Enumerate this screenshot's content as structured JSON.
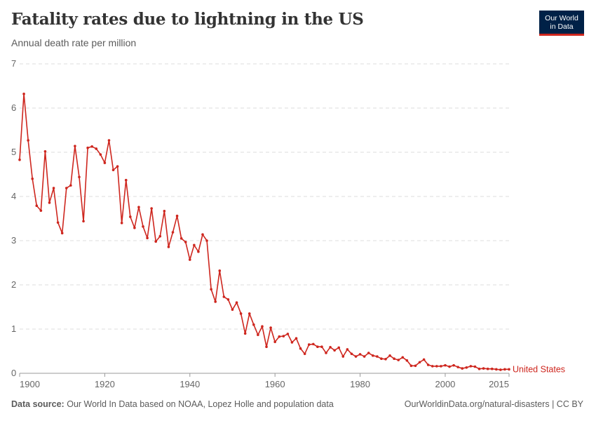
{
  "header": {
    "title": "Fatality rates due to lightning in the US",
    "subtitle": "Annual death rate per million"
  },
  "logo": {
    "line1": "Our World",
    "line2": "in Data",
    "bg": "#002147",
    "accent": "#ce261e"
  },
  "footer": {
    "source_label": "Data source:",
    "source_text": "Our World In Data based on NOAA, Lopez Holle and population data",
    "link": "OurWorldinData.org/natural-disasters | CC BY"
  },
  "chart_data": {
    "type": "line",
    "title": "Fatality rates due to lightning in the US",
    "subtitle": "Annual death rate per million",
    "xlim": [
      1900,
      2015
    ],
    "ylim": [
      0,
      7
    ],
    "x_ticks": [
      1900,
      1920,
      1940,
      1960,
      1980,
      2000,
      2015
    ],
    "y_ticks": [
      0,
      1,
      2,
      3,
      4,
      5,
      6,
      7
    ],
    "grid": "horizontal dashed",
    "color": "#ce261e",
    "series": [
      {
        "name": "United States",
        "start_year": 1900,
        "x": [
          1900,
          1901,
          1902,
          1903,
          1904,
          1905,
          1906,
          1907,
          1908,
          1909,
          1910,
          1911,
          1912,
          1913,
          1914,
          1915,
          1916,
          1917,
          1918,
          1919,
          1920,
          1921,
          1922,
          1923,
          1924,
          1925,
          1926,
          1927,
          1928,
          1929,
          1930,
          1931,
          1932,
          1933,
          1934,
          1935,
          1936,
          1937,
          1938,
          1939,
          1940,
          1941,
          1942,
          1943,
          1944,
          1945,
          1946,
          1947,
          1948,
          1949,
          1950,
          1951,
          1952,
          1953,
          1954,
          1955,
          1956,
          1957,
          1958,
          1959,
          1960,
          1961,
          1962,
          1963,
          1964,
          1965,
          1966,
          1967,
          1968,
          1969,
          1970,
          1971,
          1972,
          1973,
          1974,
          1975,
          1976,
          1977,
          1978,
          1979,
          1980,
          1981,
          1982,
          1983,
          1984,
          1985,
          1986,
          1987,
          1988,
          1989,
          1990,
          1991,
          1992,
          1993,
          1994,
          1995,
          1996,
          1997,
          1998,
          1999,
          2000,
          2001,
          2002,
          2003,
          2004,
          2005,
          2006,
          2007,
          2008,
          2009,
          2010,
          2011,
          2012,
          2013,
          2014,
          2015
        ],
        "values": [
          4.83,
          6.32,
          5.27,
          4.4,
          3.79,
          3.68,
          5.02,
          3.86,
          4.19,
          3.41,
          3.17,
          4.19,
          4.25,
          5.14,
          4.44,
          3.44,
          5.1,
          5.13,
          5.08,
          4.95,
          4.76,
          5.27,
          4.6,
          4.68,
          3.4,
          4.37,
          3.54,
          3.29,
          3.76,
          3.32,
          3.06,
          3.73,
          2.98,
          3.1,
          3.67,
          2.86,
          3.19,
          3.56,
          3.05,
          2.97,
          2.57,
          2.9,
          2.75,
          3.14,
          3.0,
          1.9,
          1.62,
          2.32,
          1.73,
          1.67,
          1.44,
          1.6,
          1.35,
          0.9,
          1.35,
          1.1,
          0.87,
          1.06,
          0.6,
          1.03,
          0.71,
          0.83,
          0.84,
          0.89,
          0.7,
          0.79,
          0.56,
          0.44,
          0.65,
          0.66,
          0.6,
          0.6,
          0.46,
          0.59,
          0.52,
          0.58,
          0.38,
          0.54,
          0.44,
          0.38,
          0.43,
          0.38,
          0.46,
          0.4,
          0.38,
          0.33,
          0.32,
          0.4,
          0.33,
          0.3,
          0.36,
          0.29,
          0.17,
          0.17,
          0.25,
          0.31,
          0.19,
          0.16,
          0.16,
          0.16,
          0.18,
          0.15,
          0.18,
          0.14,
          0.11,
          0.13,
          0.16,
          0.15,
          0.1,
          0.11,
          0.1,
          0.1,
          0.09,
          0.08,
          0.09,
          0.09
        ]
      }
    ]
  }
}
